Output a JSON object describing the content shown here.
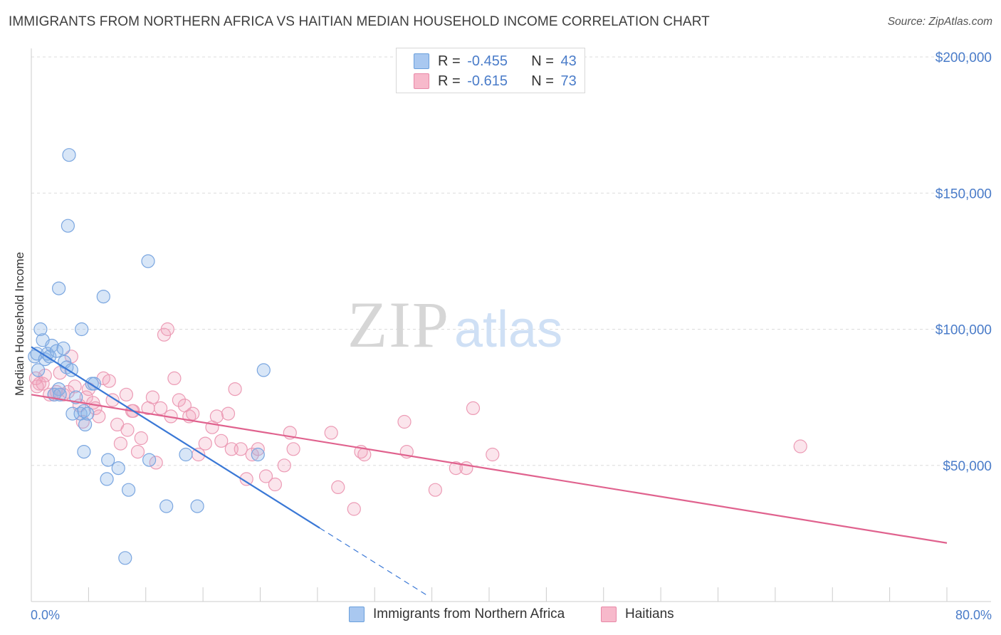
{
  "title": "IMMIGRANTS FROM NORTHERN AFRICA VS HAITIAN MEDIAN HOUSEHOLD INCOME CORRELATION CHART",
  "source": "Source: ZipAtlas.com",
  "watermark": {
    "zip": "ZIP",
    "atlas": "atlas"
  },
  "legend_top": [
    {
      "r_label": "R =",
      "r_value": "-0.455",
      "n_label": "N =",
      "n_value": "43",
      "color": "#a9c8f0",
      "border": "#6a9fdc"
    },
    {
      "r_label": "R =",
      "r_value": "-0.615",
      "n_label": "N =",
      "n_value": "73",
      "color": "#f7b9cb",
      "border": "#e888a7"
    }
  ],
  "legend_bottom": [
    {
      "label": "Immigrants from Northern Africa",
      "color": "#a9c8f0",
      "border": "#6a9fdc"
    },
    {
      "label": "Haitians",
      "color": "#f7b9cb",
      "border": "#e888a7"
    }
  ],
  "colors": {
    "blue_point": "#8fb6e8",
    "blue_line": "#3a78d6",
    "pink_point": "#f1a3bb",
    "pink_line": "#e0628e",
    "axis_text": "#4a7cc9",
    "grid": "#dcdcdc"
  },
  "chart_data": {
    "type": "scatter",
    "title": "IMMIGRANTS FROM NORTHERN AFRICA VS HAITIAN MEDIAN HOUSEHOLD INCOME CORRELATION CHART",
    "xlabel": "",
    "ylabel": "Median Household Income",
    "xlim": [
      0,
      80
    ],
    "ylim": [
      0,
      200000
    ],
    "x_tick_labels": [
      "0.0%",
      "80.0%"
    ],
    "y_ticks": [
      50000,
      100000,
      150000,
      200000
    ],
    "y_tick_labels": [
      "$50,000",
      "$100,000",
      "$150,000",
      "$200,000"
    ],
    "grid": true,
    "series": [
      {
        "name": "Immigrants from Northern Africa",
        "points": [
          [
            0.3,
            90000
          ],
          [
            0.5,
            91000
          ],
          [
            0.8,
            100000
          ],
          [
            1.0,
            96000
          ],
          [
            1.2,
            89000
          ],
          [
            1.4,
            91000
          ],
          [
            1.6,
            90000
          ],
          [
            1.8,
            94000
          ],
          [
            2.2,
            92000
          ],
          [
            2.4,
            78000
          ],
          [
            2.8,
            93000
          ],
          [
            2.9,
            88000
          ],
          [
            3.1,
            86000
          ],
          [
            3.5,
            85000
          ],
          [
            2.0,
            76000
          ],
          [
            2.5,
            76000
          ],
          [
            3.6,
            69000
          ],
          [
            3.9,
            75000
          ],
          [
            4.3,
            69000
          ],
          [
            4.6,
            70000
          ],
          [
            4.7,
            65000
          ],
          [
            4.9,
            69000
          ],
          [
            5.3,
            80000
          ],
          [
            5.5,
            80000
          ],
          [
            2.4,
            115000
          ],
          [
            3.2,
            138000
          ],
          [
            3.3,
            164000
          ],
          [
            4.4,
            100000
          ],
          [
            6.3,
            112000
          ],
          [
            10.2,
            125000
          ],
          [
            4.6,
            55000
          ],
          [
            6.7,
            52000
          ],
          [
            6.6,
            45000
          ],
          [
            7.6,
            49000
          ],
          [
            8.5,
            41000
          ],
          [
            10.3,
            52000
          ],
          [
            11.8,
            35000
          ],
          [
            13.5,
            54000
          ],
          [
            14.5,
            35000
          ],
          [
            8.2,
            16000
          ],
          [
            19.8,
            54000
          ],
          [
            20.3,
            85000
          ],
          [
            0.6,
            85000
          ]
        ],
        "trend": {
          "x": [
            0.0,
            25.2
          ],
          "y": [
            93500,
            27000
          ]
        },
        "trend_dashed": {
          "x": [
            25.2,
            34.5
          ],
          "y": [
            27000,
            2500
          ]
        }
      },
      {
        "name": "Haitians",
        "points": [
          [
            0.4,
            82000
          ],
          [
            0.7,
            80000
          ],
          [
            1.0,
            80000
          ],
          [
            1.2,
            83000
          ],
          [
            1.6,
            76000
          ],
          [
            2.0,
            76000
          ],
          [
            2.2,
            77000
          ],
          [
            2.5,
            84000
          ],
          [
            2.8,
            76000
          ],
          [
            3.2,
            77000
          ],
          [
            3.5,
            90000
          ],
          [
            3.8,
            79000
          ],
          [
            4.2,
            72000
          ],
          [
            4.5,
            66000
          ],
          [
            4.8,
            75000
          ],
          [
            5.0,
            78000
          ],
          [
            5.4,
            73000
          ],
          [
            5.6,
            71000
          ],
          [
            5.9,
            68000
          ],
          [
            6.3,
            82000
          ],
          [
            6.8,
            81000
          ],
          [
            7.1,
            74000
          ],
          [
            7.5,
            65000
          ],
          [
            7.8,
            58000
          ],
          [
            8.3,
            76000
          ],
          [
            8.4,
            63000
          ],
          [
            8.9,
            70000
          ],
          [
            9.3,
            55000
          ],
          [
            9.6,
            60000
          ],
          [
            10.2,
            71000
          ],
          [
            10.6,
            75000
          ],
          [
            10.9,
            51000
          ],
          [
            11.3,
            71000
          ],
          [
            11.6,
            98000
          ],
          [
            11.9,
            100000
          ],
          [
            12.2,
            68000
          ],
          [
            12.5,
            82000
          ],
          [
            12.9,
            74000
          ],
          [
            13.4,
            72000
          ],
          [
            13.8,
            68000
          ],
          [
            14.1,
            69000
          ],
          [
            14.6,
            54000
          ],
          [
            15.2,
            58000
          ],
          [
            15.8,
            64000
          ],
          [
            16.2,
            68000
          ],
          [
            16.6,
            59000
          ],
          [
            17.2,
            69000
          ],
          [
            17.5,
            56000
          ],
          [
            17.8,
            78000
          ],
          [
            18.3,
            56000
          ],
          [
            18.8,
            45000
          ],
          [
            19.3,
            54000
          ],
          [
            19.8,
            56000
          ],
          [
            20.5,
            46000
          ],
          [
            21.3,
            43000
          ],
          [
            22.1,
            50000
          ],
          [
            22.6,
            62000
          ],
          [
            22.9,
            56000
          ],
          [
            26.2,
            62000
          ],
          [
            26.8,
            42000
          ],
          [
            28.2,
            34000
          ],
          [
            28.8,
            55000
          ],
          [
            29.1,
            54000
          ],
          [
            32.6,
            66000
          ],
          [
            32.8,
            55000
          ],
          [
            35.3,
            41000
          ],
          [
            37.1,
            49000
          ],
          [
            38.0,
            49000
          ],
          [
            38.6,
            71000
          ],
          [
            40.3,
            54000
          ],
          [
            67.2,
            57000
          ],
          [
            0.5,
            79000
          ],
          [
            8.8,
            70000
          ]
        ],
        "trend": {
          "x": [
            0.0,
            80.0
          ],
          "y": [
            76000,
            21500
          ]
        }
      }
    ]
  }
}
